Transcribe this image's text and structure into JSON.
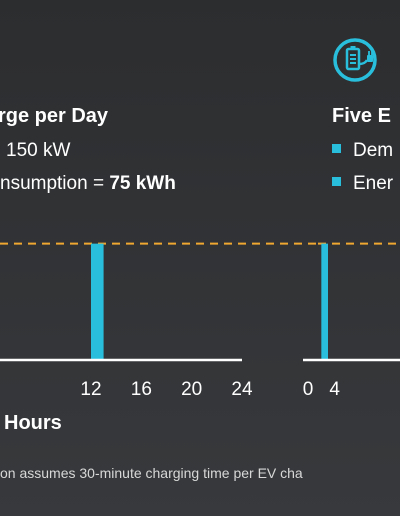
{
  "colors": {
    "accent": "#29bfdc",
    "threshold": "#f0a830",
    "axis": "#ffffff",
    "text": "#ffffff"
  },
  "left_panel": {
    "title": "rge per Day",
    "line1": "150 kW",
    "line2_prefix": "nsumption = ",
    "line2_value": "75 kWh"
  },
  "right_panel": {
    "title": "Five E",
    "legend": [
      "Dem",
      "Ener"
    ],
    "icon": "battery-plug-icon"
  },
  "footnote": "on assumes 30-minute charging time per EV cha",
  "chart_data": [
    {
      "type": "bar",
      "x_unit_label": "Hours",
      "xlim": [
        0,
        24
      ],
      "x_ticks": [
        12,
        16,
        20,
        24
      ],
      "bars": [
        {
          "x_start": 12,
          "x_end": 13,
          "value": 150
        }
      ],
      "threshold": {
        "value": 150
      },
      "ylim": [
        0,
        165
      ]
    },
    {
      "type": "bar",
      "xlim": [
        0,
        24
      ],
      "x_ticks": [
        0,
        4
      ],
      "bars": [
        {
          "x_start": 2,
          "x_end": 3,
          "value": 150
        }
      ],
      "threshold": {
        "value": 150
      },
      "ylim": [
        0,
        165
      ]
    }
  ]
}
